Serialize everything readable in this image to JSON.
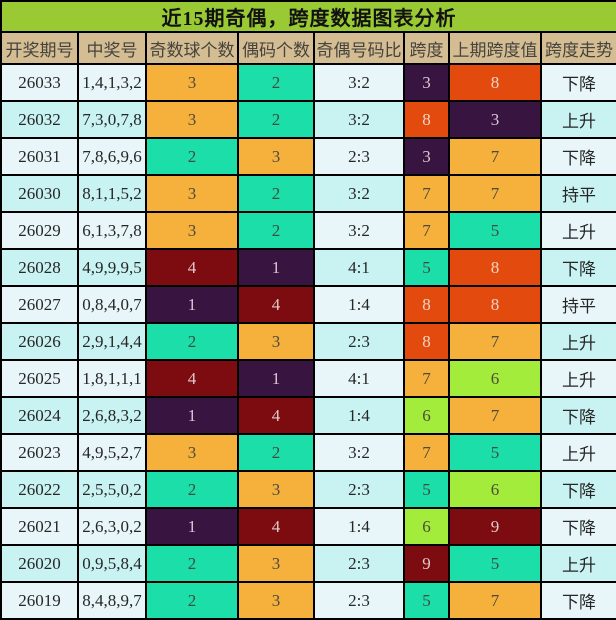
{
  "title": "近15期奇偶，跨度数据图表分析",
  "colors": {
    "title_bg": "#9ACA33",
    "header_bg": "#D5BD93",
    "row_a": "#E8F6FA",
    "row_b": "#C9F3F2",
    "border": "#000000",
    "cell_palette": {
      "orange": {
        "bg": "#F6B13D",
        "fg": "#4F4B3B"
      },
      "teal": {
        "bg": "#1CDEA8",
        "fg": "#3E4C44"
      },
      "lime": {
        "bg": "#A3EC3C",
        "fg": "#4A4F38"
      },
      "purple": {
        "bg": "#381441",
        "fg": "#DCC9D5"
      },
      "maroon": {
        "bg": "#7C0C10",
        "fg": "#E3C9C9"
      },
      "redorange": {
        "bg": "#E34A0D",
        "fg": "#F0D4C6"
      }
    }
  },
  "chart_data": {
    "type": "table",
    "title": "近15期奇偶，跨度数据图表分析",
    "columns": [
      "开奖期号",
      "中奖号",
      "奇数球个数",
      "偶码个数",
      "奇偶号码比",
      "跨度",
      "上期跨度值",
      "跨度走势"
    ],
    "rows": [
      {
        "period": "26033",
        "numbers": "1,4,1,3,2",
        "odd_count": "3",
        "odd_color": "orange",
        "even_count": "2",
        "even_color": "teal",
        "ratio": "3:2",
        "span": "3",
        "span_color": "purple",
        "prev_span": "8",
        "prev_color": "redorange",
        "trend": "下降"
      },
      {
        "period": "26032",
        "numbers": "7,3,0,7,8",
        "odd_count": "3",
        "odd_color": "orange",
        "even_count": "2",
        "even_color": "teal",
        "ratio": "3:2",
        "span": "8",
        "span_color": "redorange",
        "prev_span": "3",
        "prev_color": "purple",
        "trend": "上升"
      },
      {
        "period": "26031",
        "numbers": "7,8,6,9,6",
        "odd_count": "2",
        "odd_color": "teal",
        "even_count": "3",
        "even_color": "orange",
        "ratio": "2:3",
        "span": "3",
        "span_color": "purple",
        "prev_span": "7",
        "prev_color": "orange",
        "trend": "下降"
      },
      {
        "period": "26030",
        "numbers": "8,1,1,5,2",
        "odd_count": "3",
        "odd_color": "orange",
        "even_count": "2",
        "even_color": "teal",
        "ratio": "3:2",
        "span": "7",
        "span_color": "orange",
        "prev_span": "7",
        "prev_color": "orange",
        "trend": "持平"
      },
      {
        "period": "26029",
        "numbers": "6,1,3,7,8",
        "odd_count": "3",
        "odd_color": "orange",
        "even_count": "2",
        "even_color": "teal",
        "ratio": "3:2",
        "span": "7",
        "span_color": "orange",
        "prev_span": "5",
        "prev_color": "teal",
        "trend": "上升"
      },
      {
        "period": "26028",
        "numbers": "4,9,9,9,5",
        "odd_count": "4",
        "odd_color": "maroon",
        "even_count": "1",
        "even_color": "purple",
        "ratio": "4:1",
        "span": "5",
        "span_color": "teal",
        "prev_span": "8",
        "prev_color": "redorange",
        "trend": "下降"
      },
      {
        "period": "26027",
        "numbers": "0,8,4,0,7",
        "odd_count": "1",
        "odd_color": "purple",
        "even_count": "4",
        "even_color": "maroon",
        "ratio": "1:4",
        "span": "8",
        "span_color": "redorange",
        "prev_span": "8",
        "prev_color": "redorange",
        "trend": "持平"
      },
      {
        "period": "26026",
        "numbers": "2,9,1,4,4",
        "odd_count": "2",
        "odd_color": "teal",
        "even_count": "3",
        "even_color": "orange",
        "ratio": "2:3",
        "span": "8",
        "span_color": "redorange",
        "prev_span": "7",
        "prev_color": "orange",
        "trend": "上升"
      },
      {
        "period": "26025",
        "numbers": "1,8,1,1,1",
        "odd_count": "4",
        "odd_color": "maroon",
        "even_count": "1",
        "even_color": "purple",
        "ratio": "4:1",
        "span": "7",
        "span_color": "orange",
        "prev_span": "6",
        "prev_color": "lime",
        "trend": "上升"
      },
      {
        "period": "26024",
        "numbers": "2,6,8,3,2",
        "odd_count": "1",
        "odd_color": "purple",
        "even_count": "4",
        "even_color": "maroon",
        "ratio": "1:4",
        "span": "6",
        "span_color": "lime",
        "prev_span": "7",
        "prev_color": "orange",
        "trend": "下降"
      },
      {
        "period": "26023",
        "numbers": "4,9,5,2,7",
        "odd_count": "3",
        "odd_color": "orange",
        "even_count": "2",
        "even_color": "teal",
        "ratio": "3:2",
        "span": "7",
        "span_color": "orange",
        "prev_span": "5",
        "prev_color": "teal",
        "trend": "上升"
      },
      {
        "period": "26022",
        "numbers": "2,5,5,0,2",
        "odd_count": "2",
        "odd_color": "teal",
        "even_count": "3",
        "even_color": "orange",
        "ratio": "2:3",
        "span": "5",
        "span_color": "teal",
        "prev_span": "6",
        "prev_color": "lime",
        "trend": "下降"
      },
      {
        "period": "26021",
        "numbers": "2,6,3,0,2",
        "odd_count": "1",
        "odd_color": "purple",
        "even_count": "4",
        "even_color": "maroon",
        "ratio": "1:4",
        "span": "6",
        "span_color": "lime",
        "prev_span": "9",
        "prev_color": "maroon",
        "trend": "下降"
      },
      {
        "period": "26020",
        "numbers": "0,9,5,8,4",
        "odd_count": "2",
        "odd_color": "teal",
        "even_count": "3",
        "even_color": "orange",
        "ratio": "2:3",
        "span": "9",
        "span_color": "maroon",
        "prev_span": "5",
        "prev_color": "teal",
        "trend": "上升"
      },
      {
        "period": "26019",
        "numbers": "8,4,8,9,7",
        "odd_count": "2",
        "odd_color": "teal",
        "even_count": "3",
        "even_color": "orange",
        "ratio": "2:3",
        "span": "5",
        "span_color": "teal",
        "prev_span": "7",
        "prev_color": "orange",
        "trend": "下降"
      }
    ]
  }
}
